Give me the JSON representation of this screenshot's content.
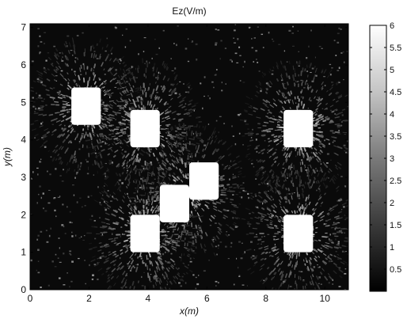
{
  "chart_data": {
    "type": "heatmap",
    "title": "Ez(V/m)",
    "xlabel": "x(m)",
    "ylabel": "y(m)",
    "xlim": [
      0,
      10.8
    ],
    "ylim": [
      0,
      7.1
    ],
    "xticks": [
      "0",
      "2",
      "4",
      "6",
      "8",
      "10"
    ],
    "yticks": [
      "0",
      "1",
      "2",
      "3",
      "4",
      "5",
      "6",
      "7"
    ],
    "colorbar": {
      "range": [
        0,
        6
      ],
      "ticks": [
        "0.5",
        "1",
        "1.5",
        "2",
        "2.5",
        "3",
        "3.5",
        "4",
        "4.5",
        "5",
        "5.5",
        "6"
      ],
      "colormap": "gray"
    },
    "obstacles": [
      {
        "x": [
          1.4,
          2.4
        ],
        "y": [
          4.4,
          5.4
        ]
      },
      {
        "x": [
          3.4,
          4.4
        ],
        "y": [
          3.8,
          4.8
        ]
      },
      {
        "x": [
          8.6,
          9.6
        ],
        "y": [
          3.8,
          4.8
        ]
      },
      {
        "x": [
          5.4,
          6.4
        ],
        "y": [
          2.4,
          3.4
        ]
      },
      {
        "x": [
          4.4,
          5.4
        ],
        "y": [
          1.8,
          2.8
        ]
      },
      {
        "x": [
          3.4,
          4.4
        ],
        "y": [
          1.0,
          2.0
        ]
      },
      {
        "x": [
          8.6,
          9.6
        ],
        "y": [
          1.0,
          2.0
        ]
      }
    ],
    "sources": [
      {
        "x": 1.9,
        "y": 4.9
      },
      {
        "x": 3.9,
        "y": 4.3
      },
      {
        "x": 9.1,
        "y": 4.3
      },
      {
        "x": 5.4,
        "y": 2.6
      },
      {
        "x": 3.9,
        "y": 1.5
      },
      {
        "x": 9.1,
        "y": 1.5
      }
    ],
    "colors": {
      "background": "#0a0a0a",
      "obstacle": "#ffffff",
      "frame": "#000000"
    }
  }
}
